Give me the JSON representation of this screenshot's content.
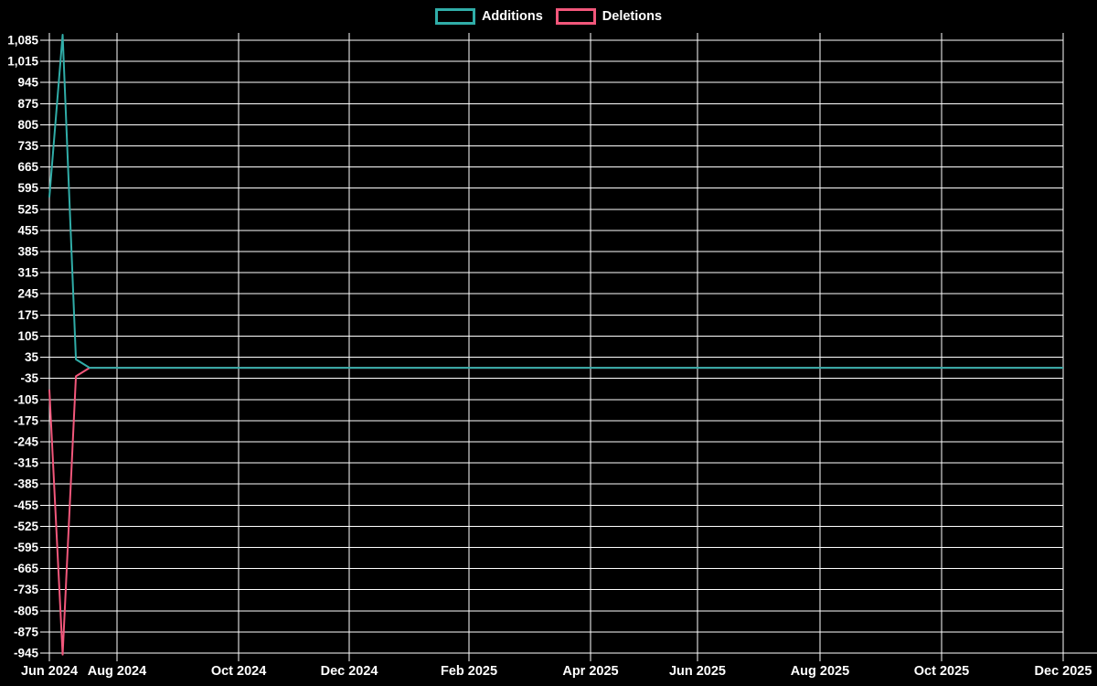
{
  "chart_data": {
    "type": "line",
    "title": "",
    "xlabel": "",
    "ylabel": "",
    "background_color": "#000000",
    "grid": true,
    "grid_color": "#ffffff",
    "text_color": "#ffffff",
    "legend_position": "top-center",
    "legend": [
      {
        "label": "Additions",
        "color": "#30ada8",
        "swatch": "outlined-box"
      },
      {
        "label": "Deletions",
        "color": "#f2577b",
        "swatch": "outlined-box"
      }
    ],
    "y_axis": {
      "ylim": [
        -945,
        1085
      ],
      "tick_step": 70,
      "ticks": [
        "1,085",
        "1,015",
        "945",
        "875",
        "805",
        "735",
        "665",
        "595",
        "525",
        "455",
        "385",
        "315",
        "245",
        "175",
        "105",
        "35",
        "-35",
        "-105",
        "-175",
        "-245",
        "-315",
        "-385",
        "-455",
        "-525",
        "-595",
        "-665",
        "-735",
        "-805",
        "-875",
        "-945"
      ]
    },
    "x_axis": {
      "range_labels": [
        "Jun 2024",
        "Dec 2025"
      ],
      "ticks": [
        {
          "label": "Jun 2024",
          "f": 0.0
        },
        {
          "label": "Aug 2024",
          "f": 0.0667
        },
        {
          "label": "Oct 2024",
          "f": 0.1867
        },
        {
          "label": "Dec 2024",
          "f": 0.2958
        },
        {
          "label": "Feb 2025",
          "f": 0.4139
        },
        {
          "label": "Apr 2025",
          "f": 0.5338
        },
        {
          "label": "Jun 2025",
          "f": 0.6393
        },
        {
          "label": "Aug 2025",
          "f": 0.7601
        },
        {
          "label": "Oct 2025",
          "f": 0.8801
        },
        {
          "label": "Dec 2025",
          "f": 1.0
        }
      ]
    },
    "series": [
      {
        "name": "Additions",
        "color": "#30ada8",
        "line_width": 2,
        "points": [
          {
            "f": 0.0,
            "v": 565
          },
          {
            "f": 0.0131,
            "v": 1103
          },
          {
            "f": 0.0262,
            "v": 28
          },
          {
            "f": 0.0397,
            "v": 0
          },
          {
            "f": 1.0,
            "v": 0
          }
        ]
      },
      {
        "name": "Deletions",
        "color": "#f2577b",
        "line_width": 2,
        "points": [
          {
            "f": 0.0,
            "v": -72
          },
          {
            "f": 0.0131,
            "v": -950
          },
          {
            "f": 0.0262,
            "v": -28
          },
          {
            "f": 0.0397,
            "v": 0
          },
          {
            "f": 1.0,
            "v": 0
          }
        ]
      }
    ]
  }
}
